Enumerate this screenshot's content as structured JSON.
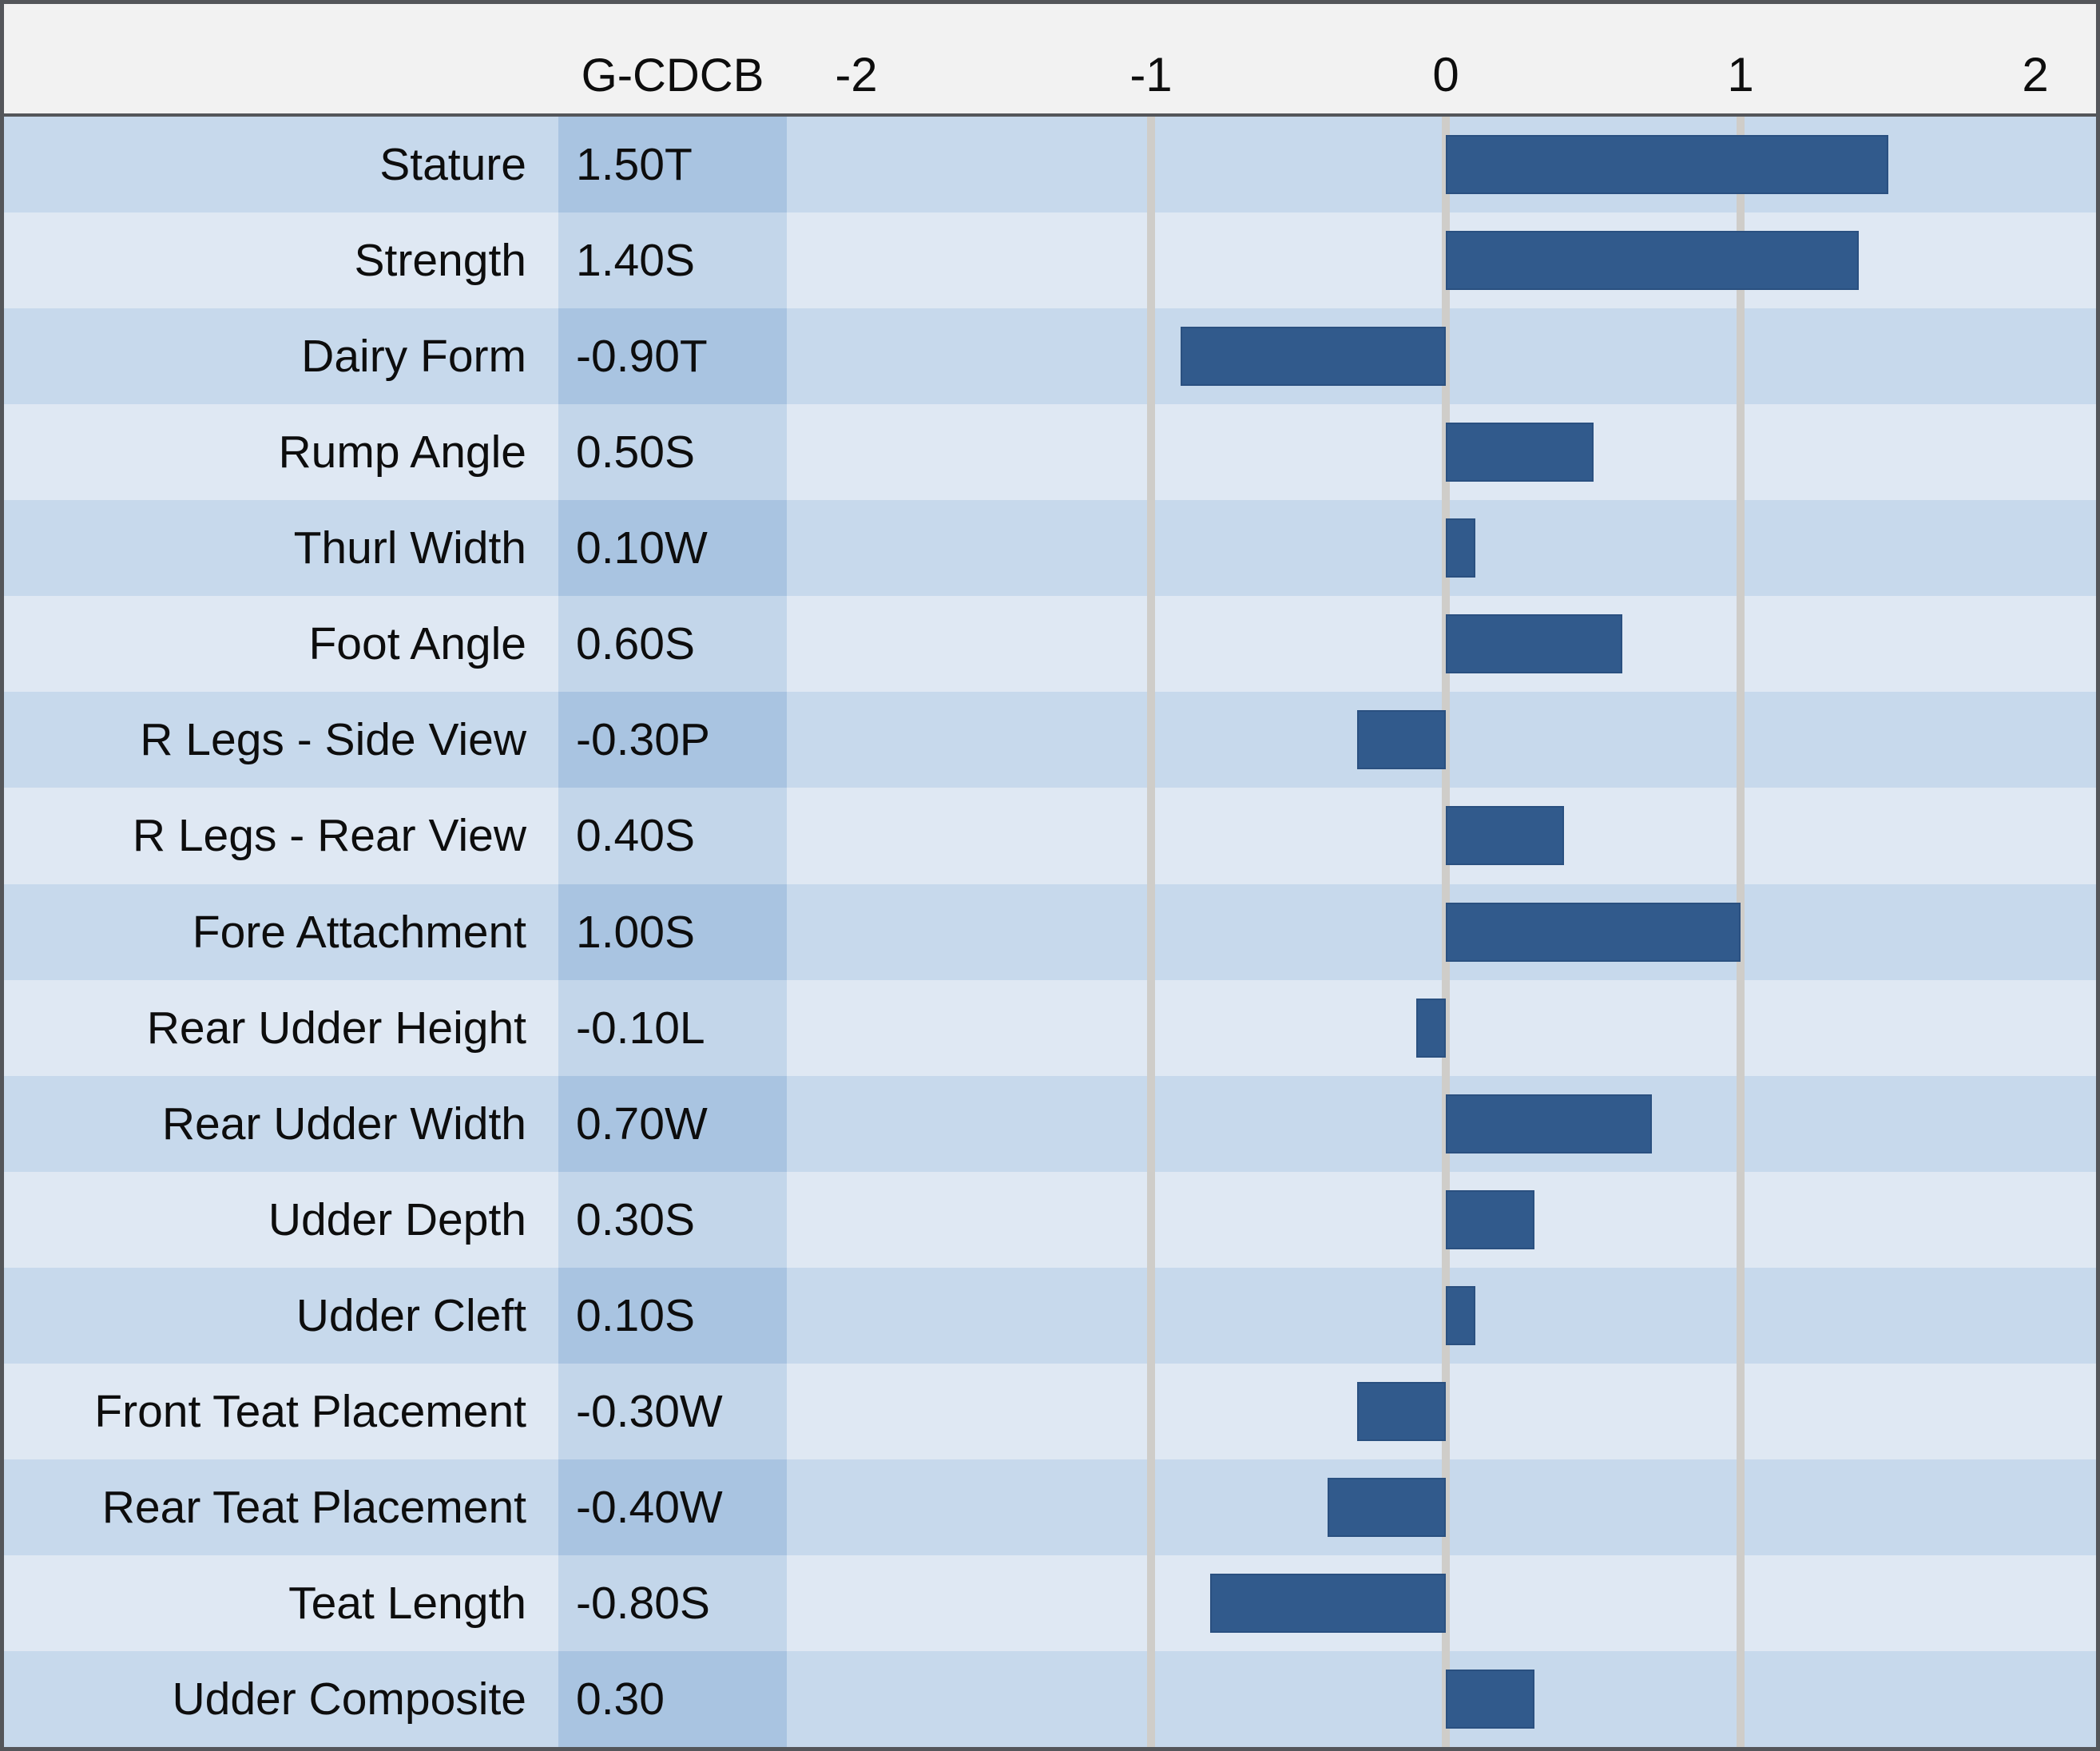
{
  "colors": {
    "bar": "#315a8c",
    "bar_border": "#2a5080",
    "row_stripe_dark": "#c7d9ec",
    "row_stripe_light": "#dfe8f3",
    "value_col_dark": "#a9c4e1",
    "value_col_light": "#c3d6ea",
    "header_background": "#f2f2f2",
    "gridline": "#cfcdc9",
    "frame_border": "#54565a",
    "text": "#0d0d0d"
  },
  "chart_data": {
    "type": "bar",
    "orientation": "horizontal",
    "title": "",
    "value_column_header": "G-CDCB",
    "categories": [
      "Stature",
      "Strength",
      "Dairy Form",
      "Rump Angle",
      "Thurl Width",
      "Foot Angle",
      "R Legs - Side View",
      "R Legs - Rear View",
      "Fore Attachment",
      "Rear Udder Height",
      "Rear Udder Width",
      "Udder Depth",
      "Udder Cleft",
      "Front Teat Placement",
      "Rear Teat Placement",
      "Teat Length",
      "Udder Composite"
    ],
    "values": [
      1.5,
      1.4,
      -0.9,
      0.5,
      0.1,
      0.6,
      -0.3,
      0.4,
      1.0,
      -0.1,
      0.7,
      0.3,
      0.1,
      -0.3,
      -0.4,
      -0.8,
      0.3
    ],
    "bar_labels": [
      "1.50T",
      "1.40S",
      "-0.90T",
      "0.50S",
      "0.10W",
      "0.60S",
      "-0.30P",
      "0.40S",
      "1.00S",
      "-0.10L",
      "0.70W",
      "0.30S",
      "0.10S",
      "-0.30W",
      "-0.40W",
      "-0.80S",
      "0.30"
    ],
    "x_ticks": [
      {
        "label": "-2",
        "value": -2
      },
      {
        "label": "-1",
        "value": -1
      },
      {
        "label": "0",
        "value": 0
      },
      {
        "label": "1",
        "value": 1
      },
      {
        "label": "2",
        "value": 2
      }
    ],
    "gridlines_at": [
      -1,
      0,
      1
    ],
    "xlim": [
      -2.24,
      2.21
    ],
    "grid": true,
    "legend": false,
    "xlabel": "",
    "ylabel": ""
  }
}
